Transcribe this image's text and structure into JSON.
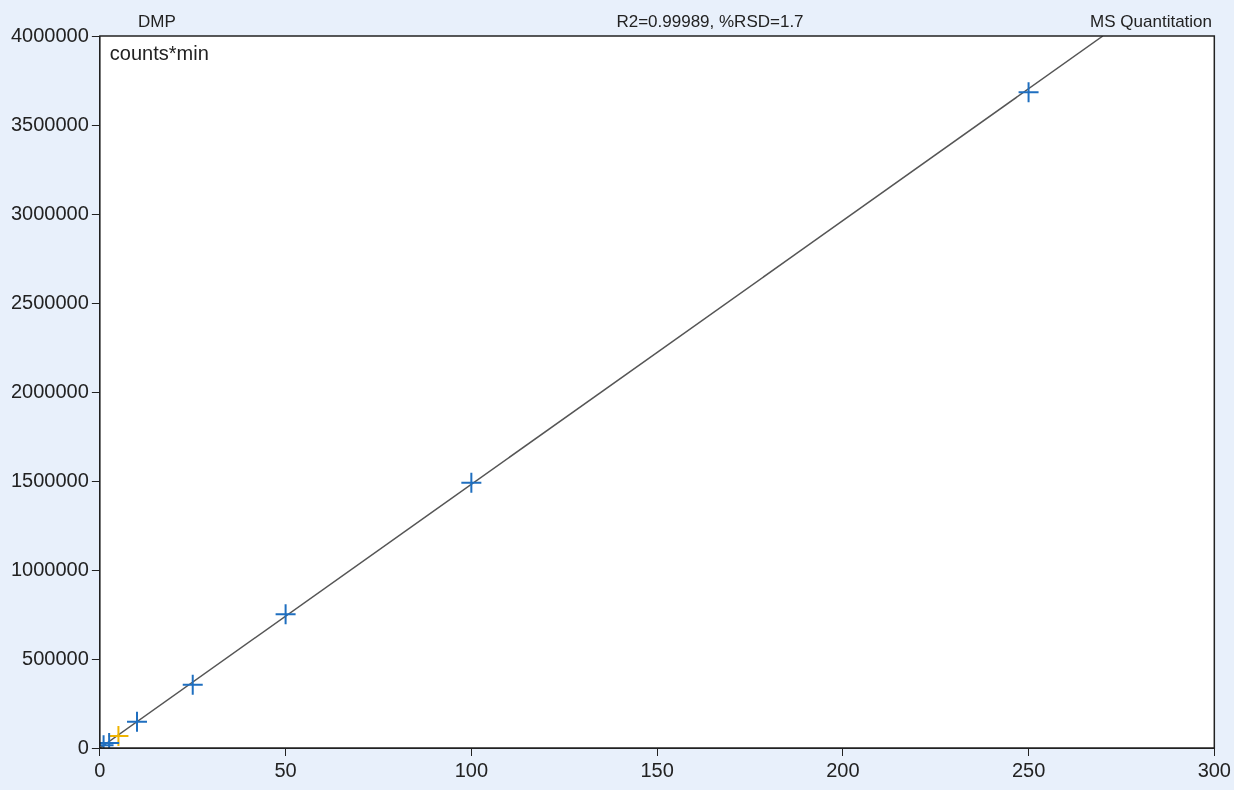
{
  "chart_data": {
    "type": "scatter",
    "title": "DMP",
    "subtitle": "R2=0.99989, %RSD=1.7",
    "ylabel": "counts*min",
    "annotations": [
      "MS Quantitation"
    ],
    "series": [
      {
        "color": "#1f6fc0",
        "x": [
          1,
          2.5,
          10,
          25,
          50,
          100,
          250
        ],
        "values": [
          15000,
          28000,
          147000,
          356000,
          751000,
          1490000,
          3684000
        ]
      },
      {
        "color": "#f0b400",
        "x": [
          5
        ],
        "values": [
          68000
        ]
      },
      {
        "type": "line",
        "color": "#555555",
        "x": [
          0,
          270
        ],
        "values": [
          0,
          4000000
        ],
        "marker": "none"
      }
    ],
    "marker": "cross",
    "xlim": [
      0,
      300
    ],
    "xticks": [
      0,
      50,
      100,
      150,
      200,
      250,
      300
    ],
    "ylim": [
      0,
      4000000
    ],
    "yticks": [
      0,
      500000,
      1000000,
      1500000,
      2000000,
      2500000,
      3000000,
      3500000,
      4000000
    ],
    "grid": false,
    "legend": false
  }
}
